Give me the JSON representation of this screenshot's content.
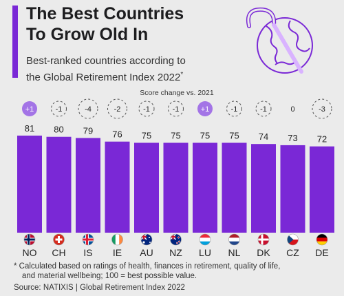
{
  "header": {
    "title_line1": "The Best Countries",
    "title_line2": "To Grow Old In",
    "subtitle_line1": "Best-ranked countries according to",
    "subtitle_line2": "the Global Retirement Index 2022",
    "subtitle_mark": "*"
  },
  "colors": {
    "accent": "#7a28d6",
    "bar": "#7a28d6",
    "badge_positive": "#a374e6",
    "background": "#ebebeb"
  },
  "chart_data": {
    "type": "bar",
    "annotation": "Score change vs. 2021",
    "categories": [
      "NO",
      "CH",
      "IS",
      "IE",
      "AU",
      "NZ",
      "LU",
      "NL",
      "DK",
      "CZ",
      "DE"
    ],
    "values": [
      81,
      80,
      79,
      76,
      75,
      75,
      75,
      75,
      74,
      73,
      72
    ],
    "score_change": [
      "+1",
      "-1",
      "-4",
      "-2",
      "-1",
      "-1",
      "+1",
      "-1",
      "-1",
      "0",
      "-3"
    ],
    "flag_icons": [
      "flag-norway-icon",
      "flag-switzerland-icon",
      "flag-iceland-icon",
      "flag-ireland-icon",
      "flag-australia-icon",
      "flag-new-zealand-icon",
      "flag-luxembourg-icon",
      "flag-netherlands-icon",
      "flag-denmark-icon",
      "flag-czechia-icon",
      "flag-germany-icon"
    ],
    "ylim": [
      0,
      81
    ]
  },
  "footer": {
    "note_line1": "* Calculated based on ratings of health, finances in retirement, quality of life,",
    "note_line2": "and material wellbeing; 100 = best possible value.",
    "source": "Source: NATIXIS | Global Retirement Index 2022"
  }
}
